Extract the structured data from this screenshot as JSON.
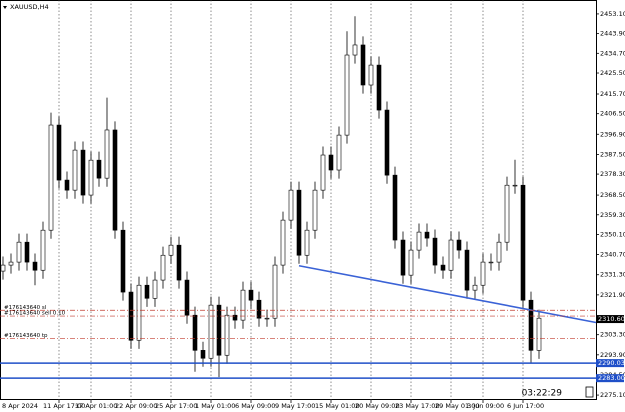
{
  "chart_data": {
    "type": "candlestick",
    "title": "XAUUSD,H4",
    "categories": [
      "8 Apr 2024",
      null,
      null,
      null,
      null,
      null,
      null,
      "11 Apr 17:00",
      null,
      null,
      null,
      "17 Apr 01:00",
      null,
      null,
      null,
      null,
      "22 Apr 09:00",
      null,
      null,
      null,
      null,
      "25 Apr 17:00",
      null,
      null,
      null,
      null,
      "1 May 01:00",
      null,
      null,
      null,
      null,
      "6 May 09:00",
      null,
      null,
      null,
      null,
      "9 May 17:00",
      null,
      null,
      null,
      null,
      "15 May 01:00",
      null,
      null,
      null,
      null,
      "20 May 09:00",
      null,
      null,
      null,
      null,
      "23 May 17:00",
      null,
      null,
      null,
      null,
      "29 May 01:00",
      null,
      null,
      null,
      "3 Jun 09:00",
      null,
      null,
      null,
      null,
      "6 Jun 17:00",
      null,
      null
    ],
    "open": [
      2333.0,
      2335.8,
      2337.2,
      2346.5,
      2337.2,
      2333.4,
      2352.1,
      2401.2,
      2375.5,
      2370.8,
      2389.5,
      2368.5,
      2384.8,
      2376.4,
      2398.9,
      2352.1,
      2323.2,
      2300.7,
      2326.4,
      2320.3,
      2328.8,
      2340.4,
      2345.1,
      2328.8,
      2312.4,
      2296.0,
      2292.3,
      2317.1,
      2293.7,
      2312.4,
      2310.1,
      2324.1,
      2319.4,
      2311.0,
      2311.0,
      2335.8,
      2356.8,
      2370.8,
      2340.4,
      2352.1,
      2370.8,
      2387.2,
      2380.2,
      2396.5,
      2433.9,
      2438.6,
      2419.9,
      2429.2,
      2408.2,
      2377.8,
      2347.5,
      2331.1,
      2342.8,
      2351.2,
      2348.4,
      2335.8,
      2333.4,
      2347.5,
      2342.8,
      2324.1,
      2326.4,
      2337.2,
      2337.2,
      2346.5,
      2373.1,
      2373.1,
      2319.4,
      2296.0
    ],
    "high": [
      2339.8,
      2341.2,
      2350.5,
      2350.5,
      2341.2,
      2356.1,
      2407.0,
      2405.2,
      2379.5,
      2393.5,
      2393.5,
      2388.8,
      2388.8,
      2414.0,
      2402.9,
      2356.1,
      2327.2,
      2330.4,
      2330.4,
      2332.8,
      2344.4,
      2349.1,
      2349.1,
      2332.8,
      2316.4,
      2300.0,
      2321.1,
      2321.1,
      2316.4,
      2316.4,
      2328.1,
      2328.1,
      2323.4,
      2315.0,
      2339.8,
      2360.8,
      2374.8,
      2374.8,
      2356.1,
      2374.8,
      2391.2,
      2391.2,
      2400.5,
      2445.0,
      2452.0,
      2442.6,
      2433.2,
      2433.2,
      2412.2,
      2381.8,
      2351.5,
      2346.8,
      2355.2,
      2355.2,
      2352.4,
      2339.8,
      2351.5,
      2351.5,
      2346.8,
      2330.4,
      2341.2,
      2341.2,
      2350.5,
      2377.1,
      2385.0,
      2377.1,
      2323.4,
      2315.0
    ],
    "low": [
      2329.0,
      2331.8,
      2333.2,
      2333.2,
      2326.4,
      2329.4,
      2348.1,
      2371.5,
      2366.8,
      2366.8,
      2364.5,
      2364.5,
      2372.4,
      2372.4,
      2348.1,
      2319.2,
      2296.7,
      2296.7,
      2316.3,
      2316.3,
      2324.8,
      2336.4,
      2324.8,
      2308.4,
      2286.0,
      2288.3,
      2288.3,
      2283.5,
      2289.7,
      2306.1,
      2306.1,
      2315.4,
      2307.0,
      2307.0,
      2307.0,
      2331.8,
      2352.8,
      2336.4,
      2336.4,
      2348.1,
      2366.8,
      2376.2,
      2376.2,
      2392.5,
      2429.9,
      2415.9,
      2415.9,
      2404.2,
      2373.8,
      2343.5,
      2327.1,
      2327.1,
      2338.8,
      2344.4,
      2331.8,
      2329.4,
      2329.4,
      2338.8,
      2320.1,
      2320.1,
      2322.4,
      2333.2,
      2333.2,
      2342.5,
      2369.1,
      2315.4,
      2290.0,
      2292.0
    ],
    "close": [
      2335.8,
      2337.2,
      2346.5,
      2337.2,
      2333.4,
      2352.1,
      2401.2,
      2375.5,
      2370.8,
      2389.5,
      2368.5,
      2384.8,
      2376.4,
      2398.9,
      2352.1,
      2323.2,
      2300.7,
      2326.4,
      2320.3,
      2328.8,
      2340.4,
      2345.1,
      2328.8,
      2312.4,
      2296.0,
      2292.3,
      2317.1,
      2293.7,
      2312.4,
      2310.1,
      2324.1,
      2319.4,
      2311.0,
      2311.0,
      2335.8,
      2356.8,
      2370.8,
      2340.4,
      2352.1,
      2370.8,
      2387.2,
      2380.2,
      2396.5,
      2433.9,
      2438.6,
      2419.9,
      2429.2,
      2408.2,
      2377.8,
      2347.5,
      2331.1,
      2342.8,
      2351.2,
      2348.4,
      2335.8,
      2333.4,
      2347.5,
      2342.8,
      2324.1,
      2326.4,
      2337.2,
      2337.2,
      2346.5,
      2373.1,
      2373.1,
      2319.4,
      2296.0,
      2311.0
    ],
    "ylim": [
      2272.8,
      2459.6
    ],
    "yticks": [
      {
        "value": 2275.1,
        "label": "2275.10"
      },
      {
        "value": 2284.5,
        "label": "2284.50"
      },
      {
        "value": 2293.9,
        "label": "2293.90"
      },
      {
        "value": 2303.3,
        "label": "2303.30"
      },
      {
        "value": 2321.9,
        "label": "2321.90"
      },
      {
        "value": 2331.3,
        "label": "2331.30"
      },
      {
        "value": 2340.7,
        "label": "2340.70"
      },
      {
        "value": 2350.1,
        "label": "2350.10"
      },
      {
        "value": 2359.3,
        "label": "2359.30"
      },
      {
        "value": 2368.5,
        "label": "2368.50"
      },
      {
        "value": 2378.3,
        "label": "2378.30"
      },
      {
        "value": 2387.5,
        "label": "2387.50"
      },
      {
        "value": 2396.9,
        "label": "2396.90"
      },
      {
        "value": 2406.5,
        "label": "2406.50"
      },
      {
        "value": 2415.7,
        "label": "2415.70"
      },
      {
        "value": 2425.5,
        "label": "2425.50"
      },
      {
        "value": 2434.7,
        "label": "2434.70"
      },
      {
        "value": 2443.9,
        "label": "2443.90"
      },
      {
        "value": 2453.1,
        "label": "2453.10"
      }
    ],
    "grid": true,
    "bull_color": "#ffffff",
    "bear_color": "#000000",
    "order_lines": [
      {
        "label": "#176143640 sl",
        "value": 2314.7
      },
      {
        "label": "#176143640 sell 0.10",
        "value": 2312.0
      },
      {
        "label": "#176143640 tp",
        "value": 2301.6
      }
    ],
    "order_color": "#c0392b",
    "levels": [
      {
        "value": 2290.03,
        "label": "2290.03"
      },
      {
        "value": 2283.0,
        "label": "2283.00"
      }
    ],
    "level_color": "#1f4fc8",
    "current_price": {
      "value": 2310.6,
      "label": "2310.60"
    },
    "trendline": {
      "from": 2335.5,
      "to": 2309.0
    },
    "trendline_color": "#3a62d6",
    "timer": "03:22:29"
  }
}
